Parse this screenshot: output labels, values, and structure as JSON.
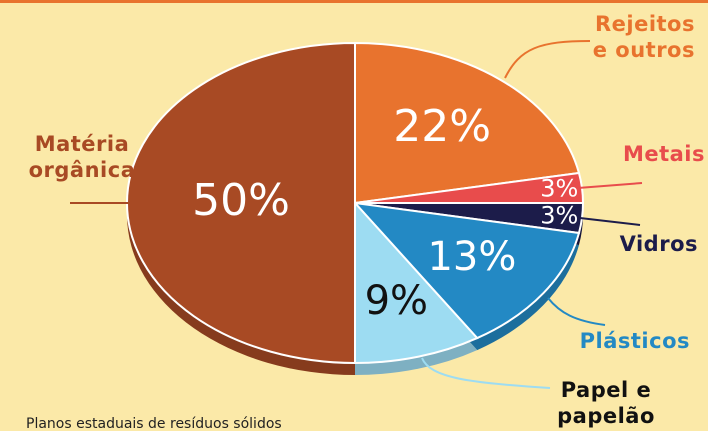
{
  "chart_data": {
    "type": "pie",
    "categories": [
      "Rejeitos e outros",
      "Metais",
      "Vidros",
      "Plásticos",
      "Papel e papelão",
      "Matéria orgânica"
    ],
    "values": [
      22,
      3,
      3,
      13,
      9,
      50
    ],
    "value_labels": [
      "22%",
      "3%",
      "3%",
      "13%",
      "9%",
      "50%"
    ],
    "colors": [
      "#e8732e",
      "#e84c4c",
      "#1c1c4a",
      "#2389c4",
      "#9ddcf2",
      "#a84a24"
    ],
    "source": "Planos estaduais de resíduos sólidos"
  }
}
